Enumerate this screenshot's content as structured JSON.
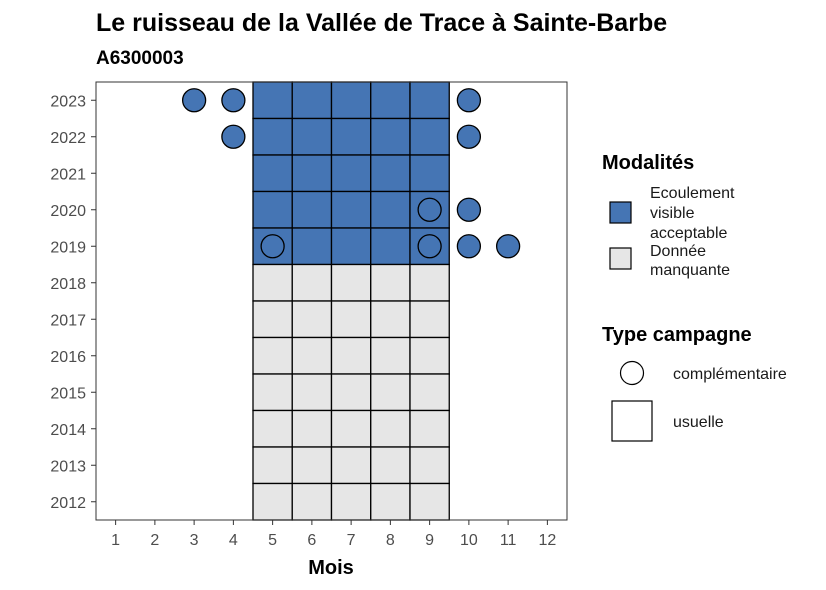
{
  "chart_data": {
    "type": "heatmap",
    "title": "Le ruisseau de la Vallée de Trace à Sainte-Barbe",
    "subtitle": "A6300003",
    "xlabel": "Mois",
    "ylabel": "",
    "x_ticks": [
      1,
      2,
      3,
      4,
      5,
      6,
      7,
      8,
      9,
      10,
      11,
      12
    ],
    "y_ticks": [
      2012,
      2013,
      2014,
      2015,
      2016,
      2017,
      2018,
      2019,
      2020,
      2021,
      2022,
      2023
    ],
    "xlim": [
      0.5,
      12.5
    ],
    "ylim": [
      2011.5,
      2023.5
    ],
    "colors": {
      "Ecoulement visible acceptable": "#4575b4",
      "Donnée manquante": "#e6e6e6"
    },
    "legend_modalites": {
      "title": "Modalités",
      "items": [
        {
          "label_lines": [
            "Ecoulement",
            "visible",
            "acceptable"
          ],
          "color": "#4575b4"
        },
        {
          "label_lines": [
            "Donnée",
            "manquante"
          ],
          "color": "#e6e6e6"
        }
      ]
    },
    "legend_type": {
      "title": "Type campagne",
      "items": [
        {
          "label": "complémentaire",
          "shape": "circle"
        },
        {
          "label": "usuelle",
          "shape": "square"
        }
      ]
    },
    "usuelle_cells": [
      {
        "year": 2023,
        "months": [
          5,
          6,
          7,
          8,
          9
        ],
        "modalite": "Ecoulement visible acceptable"
      },
      {
        "year": 2022,
        "months": [
          5,
          6,
          7,
          8,
          9
        ],
        "modalite": "Ecoulement visible acceptable"
      },
      {
        "year": 2021,
        "months": [
          5,
          6,
          7,
          8,
          9
        ],
        "modalite": "Ecoulement visible acceptable"
      },
      {
        "year": 2020,
        "months": [
          5,
          6,
          7,
          8,
          9
        ],
        "modalite": "Ecoulement visible acceptable"
      },
      {
        "year": 2019,
        "months": [
          5,
          6,
          7,
          8,
          9
        ],
        "modalite": "Ecoulement visible acceptable"
      },
      {
        "year": 2018,
        "months": [
          5,
          6,
          7,
          8,
          9
        ],
        "modalite": "Donnée manquante"
      },
      {
        "year": 2017,
        "months": [
          5,
          6,
          7,
          8,
          9
        ],
        "modalite": "Donnée manquante"
      },
      {
        "year": 2016,
        "months": [
          5,
          6,
          7,
          8,
          9
        ],
        "modalite": "Donnée manquante"
      },
      {
        "year": 2015,
        "months": [
          5,
          6,
          7,
          8,
          9
        ],
        "modalite": "Donnée manquante"
      },
      {
        "year": 2014,
        "months": [
          5,
          6,
          7,
          8,
          9
        ],
        "modalite": "Donnée manquante"
      },
      {
        "year": 2013,
        "months": [
          5,
          6,
          7,
          8,
          9
        ],
        "modalite": "Donnée manquante"
      },
      {
        "year": 2012,
        "months": [
          5,
          6,
          7,
          8,
          9
        ],
        "modalite": "Donnée manquante"
      }
    ],
    "complementaire_points": [
      {
        "year": 2023,
        "month": 3,
        "modalite": "Ecoulement visible acceptable"
      },
      {
        "year": 2023,
        "month": 4,
        "modalite": "Ecoulement visible acceptable"
      },
      {
        "year": 2023,
        "month": 10,
        "modalite": "Ecoulement visible acceptable"
      },
      {
        "year": 2022,
        "month": 4,
        "modalite": "Ecoulement visible acceptable"
      },
      {
        "year": 2022,
        "month": 10,
        "modalite": "Ecoulement visible acceptable"
      },
      {
        "year": 2020,
        "month": 9,
        "modalite": "Ecoulement visible acceptable"
      },
      {
        "year": 2020,
        "month": 10,
        "modalite": "Ecoulement visible acceptable"
      },
      {
        "year": 2019,
        "month": 5,
        "modalite": "Ecoulement visible acceptable"
      },
      {
        "year": 2019,
        "month": 9,
        "modalite": "Ecoulement visible acceptable"
      },
      {
        "year": 2019,
        "month": 10,
        "modalite": "Ecoulement visible acceptable"
      },
      {
        "year": 2019,
        "month": 11,
        "modalite": "Ecoulement visible acceptable"
      }
    ]
  }
}
